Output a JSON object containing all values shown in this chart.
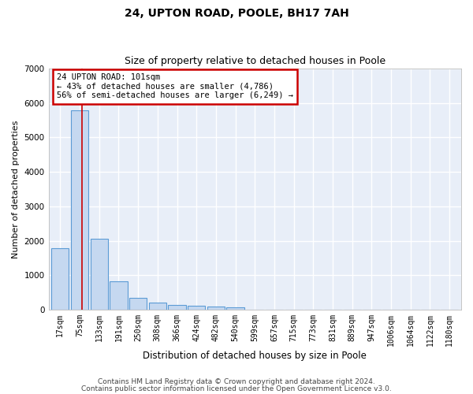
{
  "title1": "24, UPTON ROAD, POOLE, BH17 7AH",
  "title2": "Size of property relative to detached houses in Poole",
  "xlabel": "Distribution of detached houses by size in Poole",
  "ylabel": "Number of detached properties",
  "categories": [
    "17sqm",
    "75sqm",
    "133sqm",
    "191sqm",
    "250sqm",
    "308sqm",
    "366sqm",
    "424sqm",
    "482sqm",
    "540sqm",
    "599sqm",
    "657sqm",
    "715sqm",
    "773sqm",
    "831sqm",
    "889sqm",
    "947sqm",
    "1006sqm",
    "1064sqm",
    "1122sqm",
    "1180sqm"
  ],
  "values": [
    1780,
    5780,
    2060,
    820,
    340,
    195,
    125,
    105,
    95,
    65,
    0,
    0,
    0,
    0,
    0,
    0,
    0,
    0,
    0,
    0,
    0
  ],
  "bar_color": "#c5d8f0",
  "bar_edge_color": "#5b9bd5",
  "red_line_x": 1.1,
  "annotation_text": "24 UPTON ROAD: 101sqm\n← 43% of detached houses are smaller (4,786)\n56% of semi-detached houses are larger (6,249) →",
  "annotation_box_color": "#ffffff",
  "annotation_box_edge": "#cc0000",
  "red_line_color": "#cc0000",
  "ylim": [
    0,
    7000
  ],
  "yticks": [
    0,
    1000,
    2000,
    3000,
    4000,
    5000,
    6000,
    7000
  ],
  "footer1": "Contains HM Land Registry data © Crown copyright and database right 2024.",
  "footer2": "Contains public sector information licensed under the Open Government Licence v3.0.",
  "plot_bg_color": "#e8eef8",
  "grid_color": "#ffffff",
  "title_fontsize": 10,
  "subtitle_fontsize": 9,
  "tick_fontsize": 7,
  "ylabel_fontsize": 8,
  "xlabel_fontsize": 8.5,
  "footer_fontsize": 6.5,
  "annot_fontsize": 7.5
}
